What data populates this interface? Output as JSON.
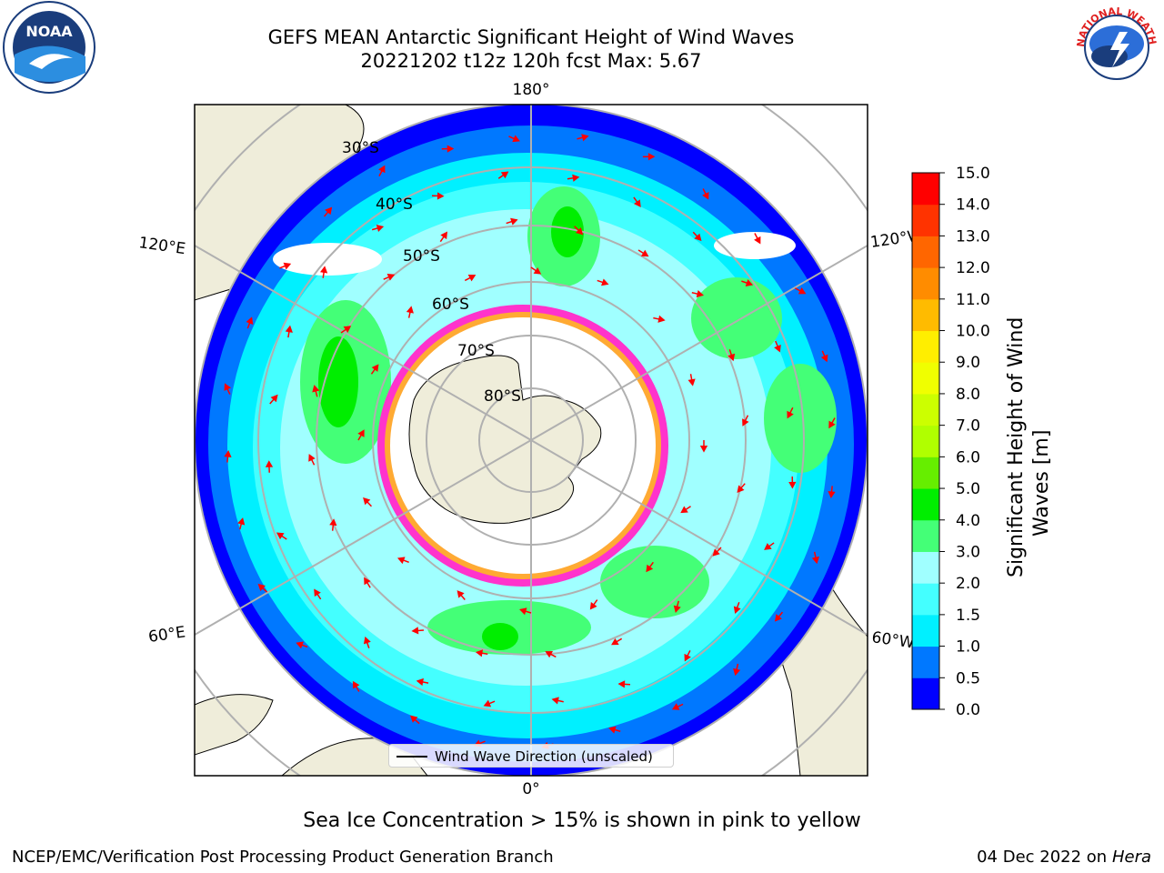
{
  "header": {
    "title_line1": "GEFS MEAN Antarctic Significant Height of Wind Waves",
    "title_line2": "20221202 t12z 120h fcst   Max: 5.67"
  },
  "logos": {
    "left": "noaa-logo",
    "left_text": "NOAA",
    "right": "nws-logo",
    "right_text": "NATIONAL WEATHER SERVICE"
  },
  "map": {
    "projection": "south-polar-stereographic",
    "longitude_labels": [
      "180°",
      "120°E",
      "120°W",
      "60°E",
      "60°W",
      "0°"
    ],
    "latitude_labels": [
      "30°S",
      "40°S",
      "50°S",
      "60°S",
      "70°S",
      "80°S"
    ],
    "colors": {
      "land": "#efedda",
      "ice": "#ffffff",
      "ice_edge": [
        "#ff66ff",
        "#ff33cc",
        "#ffaa33"
      ],
      "arrow": "#ff0000",
      "grid": "#b0b0b0"
    }
  },
  "legend": {
    "label": "Wind Wave Direction (unscaled)"
  },
  "colorbar": {
    "label_line1": "Significant Height of Wind",
    "label_line2": "Waves [m]",
    "ticks": [
      "0.0",
      "0.5",
      "1.0",
      "1.5",
      "2.0",
      "3.0",
      "4.0",
      "5.0",
      "6.0",
      "7.0",
      "8.0",
      "9.0",
      "10.0",
      "11.0",
      "12.0",
      "13.0",
      "14.0",
      "15.0"
    ],
    "colors": [
      "#0000ff",
      "#0078ff",
      "#00f0ff",
      "#44ffff",
      "#a0ffff",
      "#44ff77",
      "#00ee00",
      "#66ee00",
      "#b0ff00",
      "#ccff00",
      "#f0ff00",
      "#ffee00",
      "#ffbb00",
      "#ff8c00",
      "#ff6600",
      "#ff3300",
      "#ff0000"
    ]
  },
  "footer": {
    "sea_ice_note": "Sea Ice Concentration > 15% is shown in pink to yellow",
    "credit": "NCEP/EMC/Verification Post Processing Product Generation Branch",
    "date": "04 Dec 2022 on",
    "host": "Hera"
  }
}
